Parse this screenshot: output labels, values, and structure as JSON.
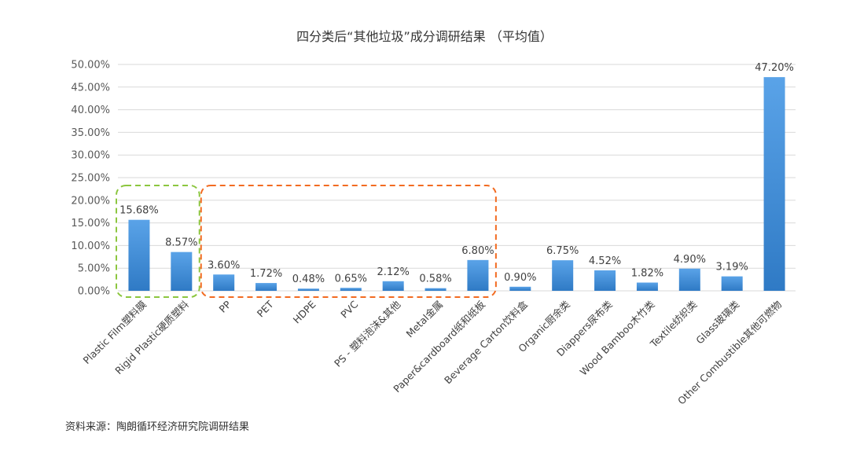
{
  "chart_data": {
    "type": "bar",
    "title": "四分类后“其他垃圾”成分调研结果 （平均值）",
    "categories": [
      "Plastic Film塑料膜",
      "Rigid Plastic硬质塑料",
      "PP",
      "PET",
      "HDPE",
      "PVC",
      "PS - 塑料泡沫&其他",
      "Metal金属",
      "Paper&cardboard纸和纸板",
      "Beverage Carton饮料盒",
      "Organic厨余类",
      "Diappers尿布类",
      "Wood Bamboo木竹类",
      "Textile纺织类",
      "Glass玻璃类",
      "Other Combustible其他可燃物"
    ],
    "values": [
      15.68,
      8.57,
      3.6,
      1.72,
      0.48,
      0.65,
      2.12,
      0.58,
      6.8,
      0.9,
      6.75,
      4.52,
      1.82,
      4.9,
      3.19,
      47.2
    ],
    "value_labels": [
      "15.68%",
      "8.57%",
      "3.60%",
      "1.72%",
      "0.48%",
      "0.65%",
      "2.12%",
      "0.58%",
      "6.80%",
      "0.90%",
      "6.75%",
      "4.52%",
      "1.82%",
      "4.90%",
      "3.19%",
      "47.20%"
    ],
    "y_ticks": [
      "0.00%",
      "5.00%",
      "10.00%",
      "15.00%",
      "20.00%",
      "25.00%",
      "30.00%",
      "35.00%",
      "40.00%",
      "45.00%",
      "50.00%"
    ],
    "ylim": [
      0,
      50
    ],
    "xlabel": "",
    "ylabel": "",
    "grid": true,
    "legend": "none",
    "bar_color": "#4a90d9",
    "highlight_groups": [
      {
        "name": "green-dashed-group",
        "from_index": 0,
        "to_index": 1,
        "color": "#8cc63f"
      },
      {
        "name": "orange-dashed-group",
        "from_index": 2,
        "to_index": 8,
        "color": "#f26b21"
      }
    ]
  },
  "source_note": "资料来源：陶朗循环经济研究院调研结果"
}
